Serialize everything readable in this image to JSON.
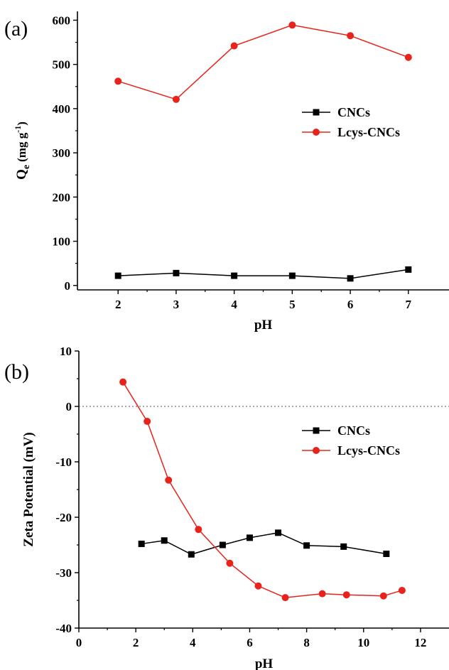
{
  "chart_data": [
    {
      "panel_label": "(a)",
      "type": "line",
      "xlabel": "pH",
      "ylabel": "Q",
      "ylabel_sub": "e",
      "ylabel_unit": "(mg g",
      "ylabel_sup": "-1",
      "ylabel_close": ")",
      "xlim": [
        1.3,
        7.7
      ],
      "ylim": [
        -10,
        620
      ],
      "xticks": [
        2,
        3,
        4,
        5,
        6,
        7
      ],
      "yticks": [
        0,
        100,
        200,
        300,
        400,
        500,
        600
      ],
      "legend_position": "right-middle",
      "series": [
        {
          "name": "CNCs",
          "color": "#000000",
          "marker": "square",
          "x": [
            2,
            3,
            4,
            5,
            6,
            7
          ],
          "y": [
            22,
            28,
            22,
            22,
            16,
            36
          ]
        },
        {
          "name": "Lcys-CNCs",
          "color": "#e8231b",
          "marker": "circle",
          "x": [
            2,
            3,
            4,
            5,
            6,
            7
          ],
          "y": [
            462,
            421,
            542,
            589,
            565,
            516
          ]
        }
      ]
    },
    {
      "panel_label": "(b)",
      "type": "line",
      "xlabel": "pH",
      "ylabel": "Zeta Potential (mV)",
      "xlim": [
        0,
        13
      ],
      "ylim": [
        -40,
        10
      ],
      "xticks": [
        0,
        2,
        4,
        6,
        8,
        10,
        12
      ],
      "yticks": [
        -40,
        -30,
        -20,
        -10,
        0,
        10
      ],
      "reference_line_y": 0,
      "legend_position": "right-middle",
      "series": [
        {
          "name": "CNCs",
          "color": "#000000",
          "marker": "square",
          "x": [
            2.2,
            3.0,
            3.95,
            5.05,
            6.0,
            7.0,
            8.0,
            9.3,
            10.8
          ],
          "y": [
            -24.8,
            -24.2,
            -26.7,
            -25.0,
            -23.7,
            -22.8,
            -25.1,
            -25.3,
            -26.6
          ]
        },
        {
          "name": "Lcys-CNCs",
          "color": "#e8231b",
          "marker": "circle",
          "x": [
            1.55,
            2.4,
            3.15,
            4.2,
            5.3,
            6.3,
            7.25,
            8.55,
            9.4,
            10.7,
            11.35
          ],
          "y": [
            4.4,
            -2.7,
            -13.3,
            -22.2,
            -28.3,
            -32.4,
            -34.5,
            -33.8,
            -34.0,
            -34.2,
            -33.2
          ]
        }
      ]
    }
  ]
}
